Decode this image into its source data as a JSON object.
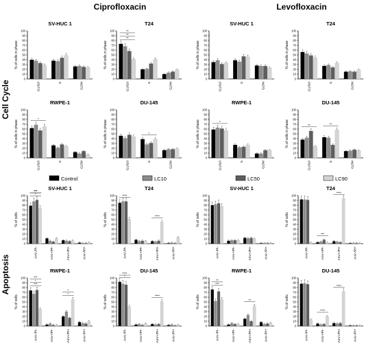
{
  "figure": {
    "col_headers": [
      "Ciprofloxacin",
      "Levofloxacin"
    ],
    "row_labels": [
      "Cell Cycle",
      "Apoptosis"
    ],
    "legend": [
      {
        "label": "Control",
        "color": "#000000"
      },
      {
        "label": "LC10",
        "color": "#8c8c8c"
      },
      {
        "label": "LC50",
        "color": "#5e5e5e"
      },
      {
        "label": "LC90",
        "color": "#d4d4d4"
      }
    ],
    "colors": [
      "#000000",
      "#8c8c8c",
      "#5e5e5e",
      "#d4d4d4"
    ]
  },
  "chart_data": [
    {
      "type": "bar",
      "title": "SV-HUC 1",
      "ylabel": "% of cells in phase",
      "ylim": [
        0,
        100
      ],
      "yticks": [
        0,
        10,
        20,
        30,
        40,
        50,
        60,
        70,
        80,
        90,
        100
      ],
      "categories": [
        "G1/G0",
        "S",
        "G2/M"
      ],
      "series": [
        {
          "name": "Control",
          "values": [
            40,
            38,
            26
          ]
        },
        {
          "name": "LC10",
          "values": [
            38,
            37,
            27
          ]
        },
        {
          "name": "LC50",
          "values": [
            33,
            44,
            25
          ]
        },
        {
          "name": "LC90",
          "values": [
            29,
            49,
            24
          ]
        }
      ],
      "annotations": []
    },
    {
      "type": "bar",
      "title": "T24",
      "ylabel": "% of cells in phase",
      "ylim": [
        0,
        100
      ],
      "yticks": [
        0,
        10,
        20,
        30,
        40,
        50,
        60,
        70,
        80,
        90,
        100
      ],
      "categories": [
        "G1/G0",
        "S",
        "G2/M"
      ],
      "series": [
        {
          "name": "Control",
          "values": [
            73,
            20,
            10
          ]
        },
        {
          "name": "LC10",
          "values": [
            68,
            21,
            13
          ]
        },
        {
          "name": "LC50",
          "values": [
            58,
            32,
            15
          ]
        },
        {
          "name": "LC90",
          "values": [
            41,
            41,
            19
          ]
        }
      ],
      "annotations": [
        {
          "text": "**",
          "c": 0
        },
        {
          "text": "**",
          "c": 0
        },
        {
          "text": "**",
          "c": 0
        }
      ]
    },
    {
      "type": "bar",
      "title": "SV-HUC 1",
      "ylabel": "% of cells in phase",
      "ylim": [
        0,
        100
      ],
      "yticks": [
        0,
        10,
        20,
        30,
        40,
        50,
        60,
        70,
        80,
        90,
        100
      ],
      "categories": [
        "G1/G0",
        "S",
        "G2/M"
      ],
      "series": [
        {
          "name": "Control",
          "values": [
            35,
            39,
            28
          ]
        },
        {
          "name": "LC10",
          "values": [
            39,
            36,
            27
          ]
        },
        {
          "name": "LC50",
          "values": [
            31,
            47,
            27
          ]
        },
        {
          "name": "LC90",
          "values": [
            33,
            46,
            23
          ]
        }
      ],
      "annotations": []
    },
    {
      "type": "bar",
      "title": "T24",
      "ylabel": "% of cells in phase",
      "ylim": [
        0,
        100
      ],
      "yticks": [
        0,
        10,
        20,
        30,
        40,
        50,
        60,
        70,
        80,
        90,
        100
      ],
      "categories": [
        "G1/G0",
        "S",
        "G2/M"
      ],
      "series": [
        {
          "name": "Control",
          "values": [
            56,
            27,
            15
          ]
        },
        {
          "name": "LC10",
          "values": [
            53,
            29,
            16
          ]
        },
        {
          "name": "LC50",
          "values": [
            49,
            24,
            15
          ]
        },
        {
          "name": "LC90",
          "values": [
            44,
            33,
            19
          ]
        }
      ],
      "annotations": []
    },
    {
      "type": "bar",
      "title": "RWPE-1",
      "ylabel": "% of cells in phase",
      "ylim": [
        0,
        100
      ],
      "yticks": [
        0,
        10,
        20,
        30,
        40,
        50,
        60,
        70,
        80,
        90,
        100
      ],
      "categories": [
        "G1/G0",
        "S",
        "G2/M"
      ],
      "series": [
        {
          "name": "Control",
          "values": [
            62,
            26,
            12
          ]
        },
        {
          "name": "LC10",
          "values": [
            69,
            21,
            9
          ]
        },
        {
          "name": "LC50",
          "values": [
            57,
            28,
            14
          ]
        },
        {
          "name": "LC90",
          "values": [
            65,
            24,
            7
          ]
        }
      ],
      "annotations": [
        {
          "text": "*",
          "c": 0
        }
      ]
    },
    {
      "type": "bar",
      "title": "DU-145",
      "ylabel": "% of cells in phase",
      "ylim": [
        0,
        100
      ],
      "yticks": [
        0,
        10,
        20,
        30,
        40,
        50,
        60,
        70,
        80,
        90,
        100
      ],
      "categories": [
        "G1/G0",
        "S",
        "G2/M"
      ],
      "series": [
        {
          "name": "Control",
          "values": [
            46,
            39,
            16
          ]
        },
        {
          "name": "LC10",
          "values": [
            41,
            28,
            18
          ]
        },
        {
          "name": "LC50",
          "values": [
            48,
            31,
            18
          ]
        },
        {
          "name": "LC90",
          "values": [
            44,
            39,
            19
          ]
        }
      ],
      "annotations": [
        {
          "text": "*",
          "c": 1
        }
      ]
    },
    {
      "type": "bar",
      "title": "RWPE-1",
      "ylabel": "% of cells in phase",
      "ylim": [
        0,
        100
      ],
      "yticks": [
        0,
        10,
        20,
        30,
        40,
        50,
        60,
        70,
        80,
        90,
        100
      ],
      "categories": [
        "G1/G0",
        "S",
        "G2/M"
      ],
      "series": [
        {
          "name": "Control",
          "values": [
            59,
            27,
            9
          ]
        },
        {
          "name": "LC10",
          "values": [
            63,
            22,
            9
          ]
        },
        {
          "name": "LC50",
          "values": [
            61,
            23,
            16
          ]
        },
        {
          "name": "LC90",
          "values": [
            57,
            27,
            16
          ]
        }
      ],
      "annotations": [
        {
          "text": "*",
          "c": 0
        }
      ]
    },
    {
      "type": "bar",
      "title": "DU-145",
      "ylabel": "% of cells in phase",
      "ylim": [
        0,
        100
      ],
      "yticks": [
        0,
        10,
        20,
        30,
        40,
        50,
        60,
        70,
        80,
        90,
        100
      ],
      "categories": [
        "G1/G0",
        "S",
        "G2/M"
      ],
      "series": [
        {
          "name": "Control",
          "values": [
            38,
            43,
            14
          ]
        },
        {
          "name": "LC10",
          "values": [
            42,
            42,
            15
          ]
        },
        {
          "name": "LC50",
          "values": [
            56,
            27,
            17
          ]
        },
        {
          "name": "LC90",
          "values": [
            24,
            58,
            15
          ]
        }
      ],
      "annotations": [
        {
          "text": "**",
          "c": 0
        },
        {
          "text": "**",
          "c": 1
        }
      ]
    },
    {
      "type": "bar",
      "title": "SV-HUC 1",
      "ylabel": "% of cells",
      "ylim": [
        0,
        100
      ],
      "yticks": [
        0,
        10,
        20,
        30,
        40,
        50,
        60,
        70,
        80,
        90,
        100
      ],
      "categories": [
        "AnV-/PI-",
        "AnV+/PI-",
        "AnV+/PI+",
        "AnV-/PI+"
      ],
      "series": [
        {
          "name": "Control",
          "values": [
            79,
            11,
            7,
            2
          ]
        },
        {
          "name": "LC10",
          "values": [
            88,
            6,
            6,
            1
          ]
        },
        {
          "name": "LC50",
          "values": [
            91,
            4,
            5,
            1
          ]
        },
        {
          "name": "LC90",
          "values": [
            73,
            11,
            6,
            2
          ]
        }
      ],
      "annotations": [
        {
          "text": "*",
          "c": 0
        },
        {
          "text": "***",
          "c": 0
        },
        {
          "text": "***",
          "c": 0
        }
      ]
    },
    {
      "type": "bar",
      "title": "T24",
      "ylabel": "% of cells",
      "ylim": [
        0,
        100
      ],
      "yticks": [
        0,
        10,
        20,
        30,
        40,
        50,
        60,
        70,
        80,
        90,
        100
      ],
      "categories": [
        "AnV-/PI-",
        "AnV+/PI-",
        "AnV+/PI+",
        "AnV-/PI+"
      ],
      "series": [
        {
          "name": "Control",
          "values": [
            85,
            8,
            5,
            1
          ]
        },
        {
          "name": "LC10",
          "values": [
            88,
            5,
            4,
            2
          ]
        },
        {
          "name": "LC50",
          "values": [
            88,
            6,
            6,
            1
          ]
        },
        {
          "name": "LC90",
          "values": [
            51,
            5,
            45,
            13
          ]
        }
      ],
      "annotations": [
        {
          "text": "****",
          "c": 0
        },
        {
          "text": "****",
          "c": 2
        }
      ]
    },
    {
      "type": "bar",
      "title": "SV-HUC 1",
      "ylabel": "% of cells",
      "ylim": [
        0,
        100
      ],
      "yticks": [
        0,
        10,
        20,
        30,
        40,
        50,
        60,
        70,
        80,
        90,
        100
      ],
      "categories": [
        "AnV-/PI-",
        "AnV+/PI-",
        "AnV+/PI+",
        "AnV-/PI+"
      ],
      "series": [
        {
          "name": "Control",
          "values": [
            80,
            6,
            12,
            1
          ]
        },
        {
          "name": "LC10",
          "values": [
            82,
            7,
            11,
            1
          ]
        },
        {
          "name": "LC50",
          "values": [
            84,
            7,
            12,
            1
          ]
        },
        {
          "name": "LC90",
          "values": [
            77,
            7,
            10,
            1
          ]
        }
      ],
      "annotations": []
    },
    {
      "type": "bar",
      "title": "T24",
      "ylabel": "% of cells",
      "ylim": [
        0,
        100
      ],
      "yticks": [
        0,
        10,
        20,
        30,
        40,
        50,
        60,
        70,
        80,
        90,
        100
      ],
      "categories": [
        "AnV-/PI-",
        "AnV+/PI-",
        "AnV+/PI+",
        "AnV-/PI+"
      ],
      "series": [
        {
          "name": "Control",
          "values": [
            92,
            3,
            5,
            1
          ]
        },
        {
          "name": "LC10",
          "values": [
            92,
            4,
            4,
            1
          ]
        },
        {
          "name": "LC50",
          "values": [
            91,
            8,
            3,
            1
          ]
        },
        {
          "name": "LC90",
          "values": [
            2,
            2,
            94,
            1
          ]
        }
      ],
      "annotations": [
        {
          "text": "***",
          "c": 1
        },
        {
          "text": "****",
          "c": 2
        }
      ]
    },
    {
      "type": "bar",
      "title": "RWPE-1",
      "ylabel": "% of cells",
      "ylim": [
        0,
        100
      ],
      "yticks": [
        0,
        10,
        20,
        30,
        40,
        50,
        60,
        70,
        80,
        90,
        100
      ],
      "categories": [
        "AnV-/PI-",
        "AnV+/PI-",
        "AnV+/PI+",
        "AnV-/PI+"
      ],
      "series": [
        {
          "name": "Control",
          "values": [
            74,
            3,
            20,
            8
          ]
        },
        {
          "name": "LC10",
          "values": [
            67,
            5,
            30,
            6
          ]
        },
        {
          "name": "LC50",
          "values": [
            75,
            2,
            17,
            5
          ]
        },
        {
          "name": "LC90",
          "values": [
            35,
            2,
            55,
            10
          ]
        }
      ],
      "annotations": [
        {
          "text": "***",
          "c": 0
        },
        {
          "text": "*",
          "c": 0
        },
        {
          "text": "***",
          "c": 0
        },
        {
          "text": "*",
          "c": 2
        },
        {
          "text": "*",
          "c": 2
        }
      ]
    },
    {
      "type": "bar",
      "title": "DU-145",
      "ylabel": "% of cells",
      "ylim": [
        0,
        100
      ],
      "yticks": [
        0,
        10,
        20,
        30,
        40,
        50,
        60,
        70,
        80,
        90,
        100
      ],
      "categories": [
        "AnV-/PI-",
        "AnV+/PI-",
        "AnV+/PI+",
        "AnV-/PI+"
      ],
      "series": [
        {
          "name": "Control",
          "values": [
            92,
            3,
            4,
            2
          ]
        },
        {
          "name": "LC10",
          "values": [
            88,
            4,
            3,
            3
          ]
        },
        {
          "name": "LC50",
          "values": [
            86,
            2,
            4,
            1
          ]
        },
        {
          "name": "LC90",
          "values": [
            40,
            5,
            51,
            2
          ]
        }
      ],
      "annotations": [
        {
          "text": "*",
          "c": 0
        },
        {
          "text": "****",
          "c": 0
        },
        {
          "text": "****",
          "c": 2
        }
      ]
    },
    {
      "type": "bar",
      "title": "RWPE-1",
      "ylabel": "% of cells",
      "ylim": [
        0,
        100
      ],
      "yticks": [
        0,
        10,
        20,
        30,
        40,
        50,
        60,
        70,
        80,
        90,
        100
      ],
      "categories": [
        "AnV-/PI-",
        "AnV+/PI-",
        "AnV+/PI+",
        "AnV-/PI+"
      ],
      "series": [
        {
          "name": "Control",
          "values": [
            76,
            3,
            15,
            8
          ]
        },
        {
          "name": "LC10",
          "values": [
            52,
            6,
            23,
            4
          ]
        },
        {
          "name": "LC50",
          "values": [
            72,
            4,
            10,
            5
          ]
        },
        {
          "name": "LC90",
          "values": [
            55,
            4,
            42,
            6
          ]
        }
      ],
      "annotations": [
        {
          "text": "***",
          "c": 0
        },
        {
          "text": "**",
          "c": 0
        },
        {
          "text": "**",
          "c": 2
        }
      ]
    },
    {
      "type": "bar",
      "title": "DU-145",
      "ylabel": "% of cells",
      "ylim": [
        0,
        100
      ],
      "yticks": [
        0,
        10,
        20,
        30,
        40,
        50,
        60,
        70,
        80,
        90,
        100
      ],
      "categories": [
        "AnV-/PI-",
        "AnV+/PI-",
        "AnV+/PI+",
        "AnV-/PI+"
      ],
      "series": [
        {
          "name": "Control",
          "values": [
            88,
            5,
            6,
            1
          ]
        },
        {
          "name": "LC10",
          "values": [
            89,
            3,
            5,
            1
          ]
        },
        {
          "name": "LC50",
          "values": [
            87,
            4,
            6,
            1
          ]
        },
        {
          "name": "LC90",
          "values": [
            13,
            20,
            72,
            1
          ]
        }
      ],
      "annotations": [
        {
          "text": "****",
          "c": 1
        },
        {
          "text": "****",
          "c": 2
        }
      ]
    }
  ]
}
